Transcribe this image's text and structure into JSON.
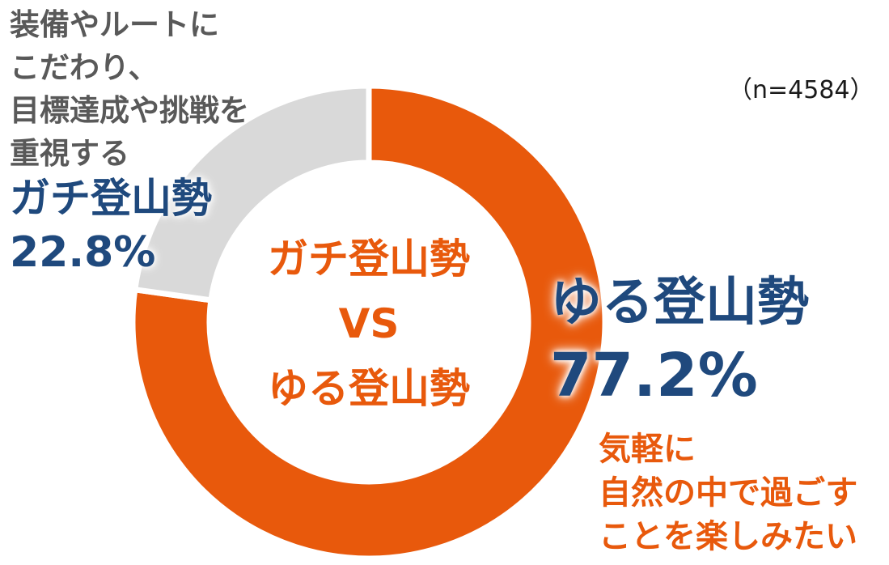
{
  "chart_data": {
    "type": "pie",
    "variant": "donut",
    "title": "",
    "center_label": [
      "ガチ登山勢",
      "VS",
      "ゆる登山勢"
    ],
    "sample_size": "（n=4584）",
    "categories": [
      "ゆる登山勢",
      "ガチ登山勢"
    ],
    "values": [
      77.2,
      22.8
    ],
    "unit": "%",
    "colors": [
      "#e8590c",
      "#d9d9d9"
    ],
    "start_angle_deg": 0,
    "direction": "clockwise",
    "annotations": [
      {
        "category": "ガチ登山勢",
        "label": "ガチ登山勢",
        "value_text": "22.8%",
        "description": [
          "装備やルートに",
          "こだわり、",
          "目標達成や挑戦を",
          "重視する"
        ]
      },
      {
        "category": "ゆる登山勢",
        "label": "ゆる登山勢",
        "value_text": "77.2%",
        "description": [
          "気軽に",
          "自然の中で過ごす",
          "ことを楽しみたい"
        ]
      }
    ],
    "legend": "none"
  },
  "colors": {
    "yuru": "#e8590c",
    "gachi": "#d9d9d9",
    "label_blue": "#1f497d",
    "desc_gray": "#595959",
    "accent_orange": "#e8590c"
  },
  "labels": {
    "gachi": {
      "desc": [
        "装備やルートに",
        "こだわり、",
        "目標達成や挑戦を",
        "重視する"
      ],
      "name": "ガチ登山勢",
      "pct": "22.8%"
    },
    "yuru": {
      "name": "ゆる登山勢",
      "pct": "77.2%",
      "desc": [
        "気軽に",
        "自然の中で過ごす",
        "ことを楽しみたい"
      ]
    },
    "center": {
      "line1": "ガチ登山勢",
      "line2": "VS",
      "line3": "ゆる登山勢"
    },
    "sample_size": "（n=4584）"
  }
}
